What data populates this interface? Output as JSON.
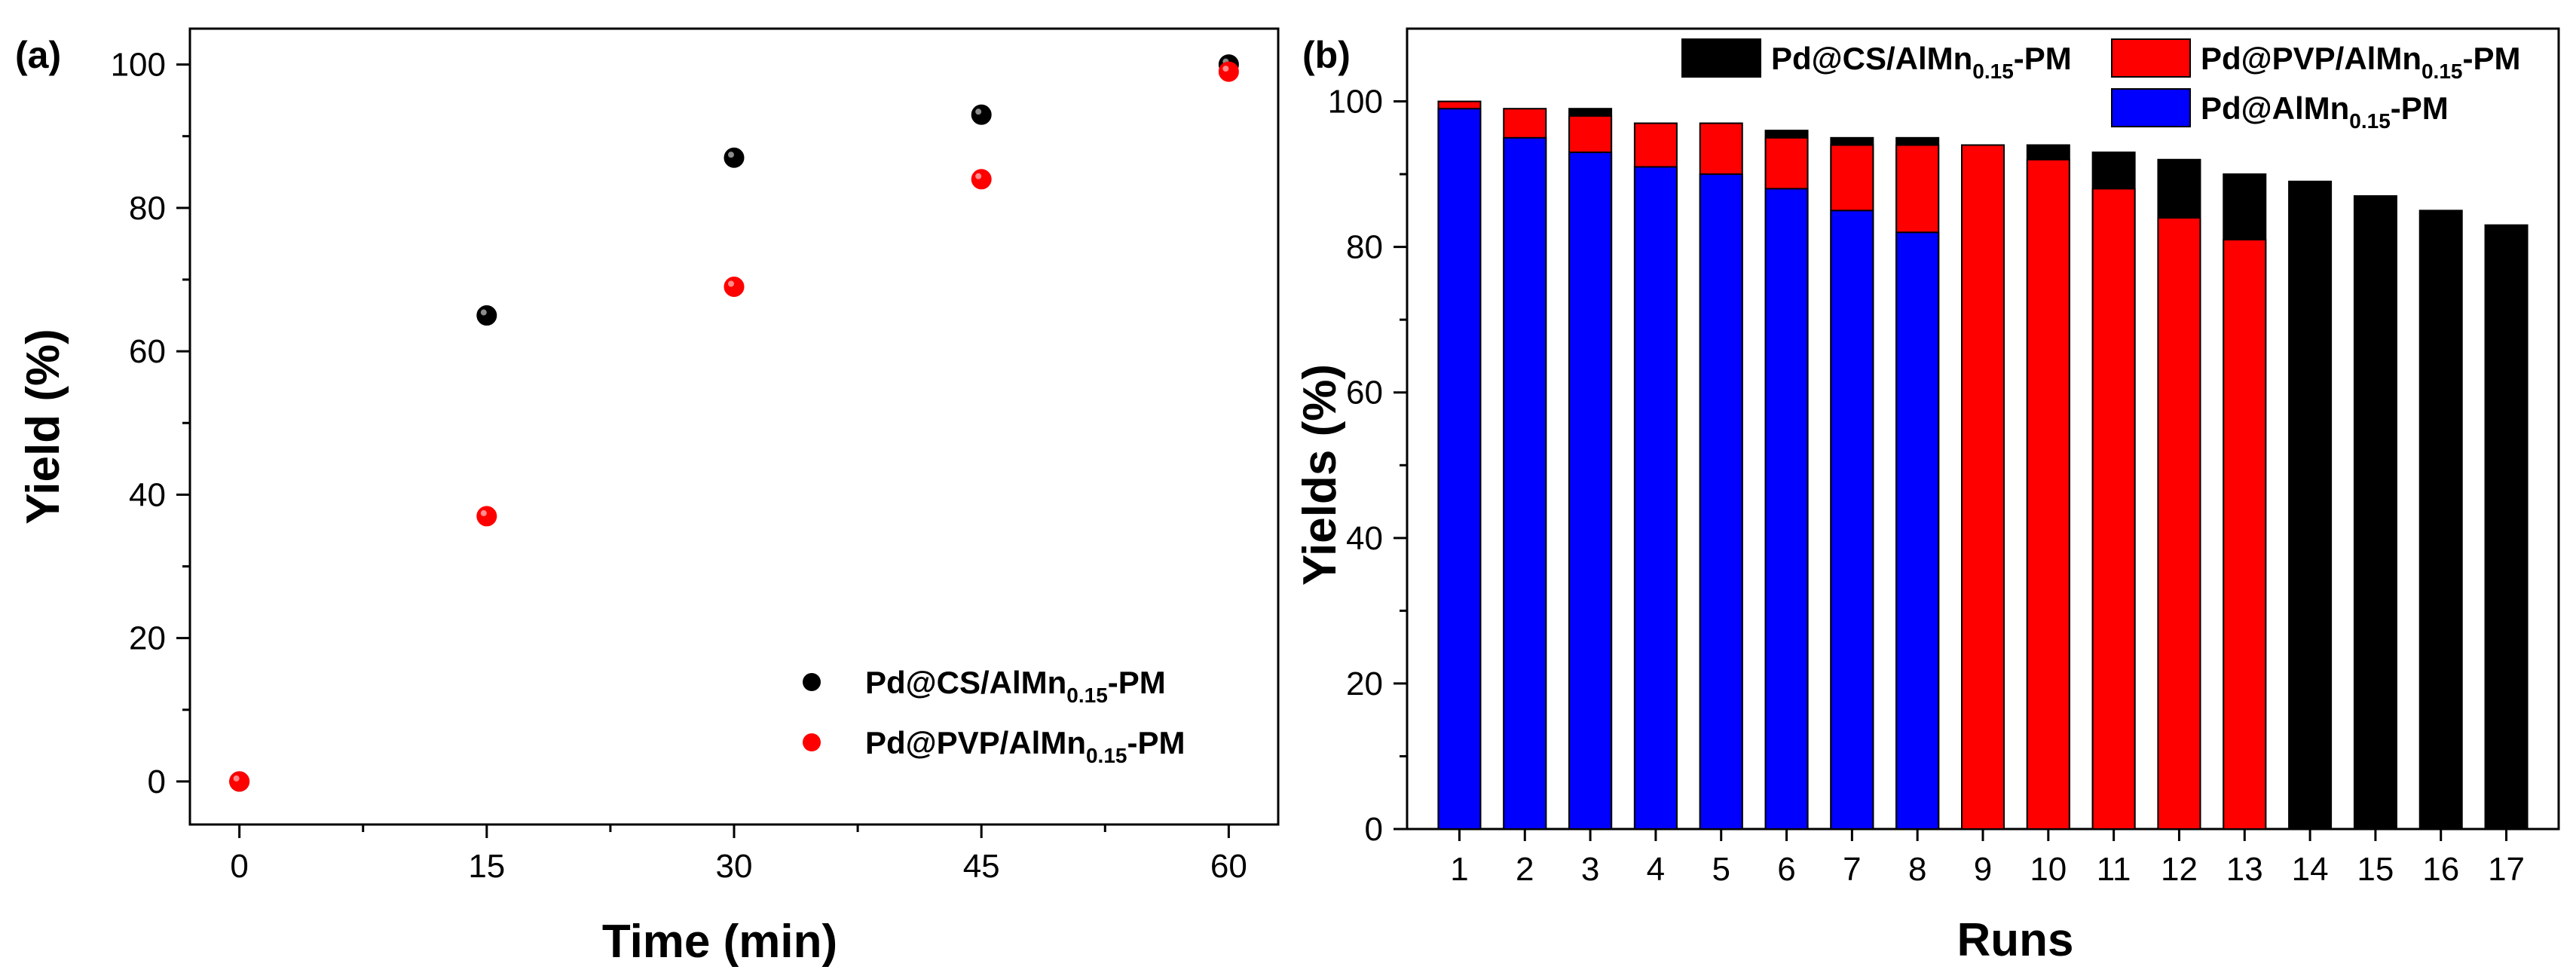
{
  "chart_data": [
    {
      "panel": "(a)",
      "type": "scatter",
      "xlabel": "Time (min)",
      "ylabel": "Yield (%)",
      "xlim": [
        -3,
        63
      ],
      "ylim": [
        -6,
        105
      ],
      "xticks": [
        "0",
        "15",
        "30",
        "45",
        "60"
      ],
      "yticks": [
        "0",
        "20",
        "40",
        "60",
        "80",
        "100"
      ],
      "legend_position": "bottom-right",
      "series": [
        {
          "name_main": "Pd@CS/AlMn",
          "name_sub": "0.15",
          "name_tail": "-PM",
          "color": "#000000",
          "x": [
            0,
            15,
            30,
            45,
            60
          ],
          "y": [
            0,
            65,
            87,
            93,
            100
          ]
        },
        {
          "name_main": "Pd@PVP/AlMn",
          "name_sub": "0.15",
          "name_tail": "-PM",
          "color": "#ff0000",
          "x": [
            0,
            15,
            30,
            45,
            60
          ],
          "y": [
            0,
            37,
            69,
            84,
            99
          ]
        }
      ]
    },
    {
      "panel": "(b)",
      "type": "bar",
      "xlabel": "Runs",
      "ylabel": "Yields (%)",
      "ylim": [
        0,
        110
      ],
      "yticks": [
        "0",
        "20",
        "40",
        "60",
        "80",
        "100"
      ],
      "categories": [
        "1",
        "2",
        "3",
        "4",
        "5",
        "6",
        "7",
        "8",
        "9",
        "10",
        "11",
        "12",
        "13",
        "14",
        "15",
        "16",
        "17"
      ],
      "legend_position": "top",
      "series": [
        {
          "name_main": "Pd@CS/AlMn",
          "name_sub": "0.15",
          "name_tail": "-PM",
          "color": "#000000",
          "values": [
            null,
            null,
            99,
            null,
            null,
            96,
            95,
            95,
            null,
            94,
            93,
            92,
            90,
            89,
            87,
            85,
            83
          ]
        },
        {
          "name_main": "Pd@PVP/AlMn",
          "name_sub": "0.15",
          "name_tail": "-PM",
          "color": "#ff0000",
          "values": [
            100,
            99,
            98,
            97,
            97,
            95,
            94,
            94,
            94,
            92,
            88,
            84,
            81,
            null,
            null,
            null,
            null
          ]
        },
        {
          "name_main": "Pd@AlMn",
          "name_sub": "0.15",
          "name_tail": "-PM",
          "color": "#0000ff",
          "values": [
            99,
            95,
            93,
            91,
            90,
            88,
            85,
            82,
            null,
            null,
            null,
            null,
            null,
            null,
            null,
            null,
            null
          ]
        }
      ]
    }
  ]
}
